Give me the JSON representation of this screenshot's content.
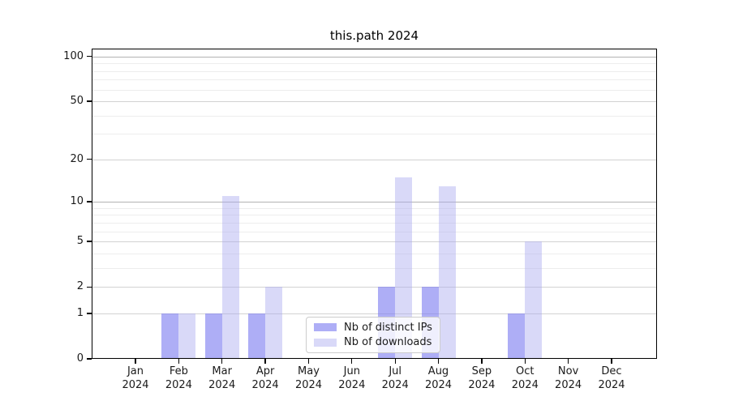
{
  "title": "this.path 2024",
  "chart_data": {
    "type": "bar",
    "title": "this.path 2024",
    "categories": [
      "Jan 2024",
      "Feb 2024",
      "Mar 2024",
      "Apr 2024",
      "May 2024",
      "Jun 2024",
      "Jul 2024",
      "Aug 2024",
      "Sep 2024",
      "Oct 2024",
      "Nov 2024",
      "Dec 2024"
    ],
    "series": [
      {
        "name": "Nb of distinct IPs",
        "color": "#7c7cf0",
        "alpha": 0.62,
        "values": [
          0,
          1,
          1,
          1,
          0,
          0,
          2,
          2,
          0,
          1,
          0,
          0
        ]
      },
      {
        "name": "Nb of downloads",
        "color": "#aaaaf0",
        "alpha": 0.45,
        "values": [
          0,
          1,
          11,
          2,
          0,
          0,
          15,
          13,
          0,
          5,
          0,
          0
        ]
      }
    ],
    "xlabel": "",
    "ylabel": "",
    "yscale": "log1p",
    "ylim": [
      0,
      113
    ],
    "yticks": [
      0,
      1,
      2,
      5,
      10,
      20,
      50,
      100
    ],
    "decade_yticks": [
      10,
      100
    ],
    "minor_yticks": [
      3,
      4,
      6,
      7,
      8,
      9,
      30,
      40,
      60,
      70,
      80,
      90
    ],
    "grid": "on",
    "legend_position": "inside-bottom-center",
    "bar_grouping": "paired-around-tick"
  },
  "colors": {
    "background": "#ffffff",
    "spine": "#000000",
    "grid_decade": "#b3b3b3",
    "grid_labeled": "#d2d2d2",
    "grid_minor": "#ededed",
    "text": "#1a1a1a"
  }
}
